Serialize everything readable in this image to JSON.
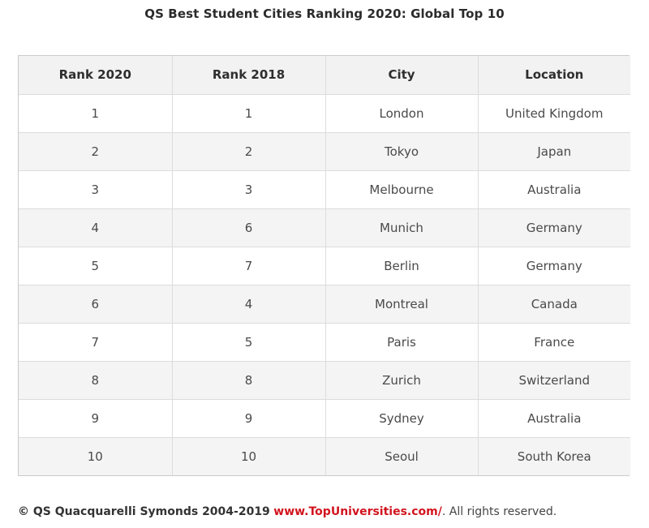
{
  "title": "QS Best Student Cities Ranking 2020: Global Top 10",
  "table": {
    "headers": [
      "Rank 2020",
      "Rank 2018",
      "City",
      "Location"
    ],
    "rows": [
      [
        "1",
        "1",
        "London",
        "United Kingdom"
      ],
      [
        "2",
        "2",
        "Tokyo",
        "Japan"
      ],
      [
        "3",
        "3",
        "Melbourne",
        "Australia"
      ],
      [
        "4",
        "6",
        "Munich",
        "Germany"
      ],
      [
        "5",
        "7",
        "Berlin",
        "Germany"
      ],
      [
        "6",
        "4",
        "Montreal",
        "Canada"
      ],
      [
        "7",
        "5",
        "Paris",
        "France"
      ],
      [
        "8",
        "8",
        "Zurich",
        "Switzerland"
      ],
      [
        "9",
        "9",
        "Sydney",
        "Australia"
      ],
      [
        "10",
        "10",
        "Seoul",
        "South Korea"
      ]
    ]
  },
  "footer": {
    "owner": "© QS Quacquarelli Symonds 2004-2019",
    "link": "www.TopUniversities.com/",
    "rights": ". All rights reserved."
  },
  "colors": {
    "link": "#d2141e",
    "header_bg": "#f2f2f2",
    "stripe_bg": "#f4f4f4"
  }
}
